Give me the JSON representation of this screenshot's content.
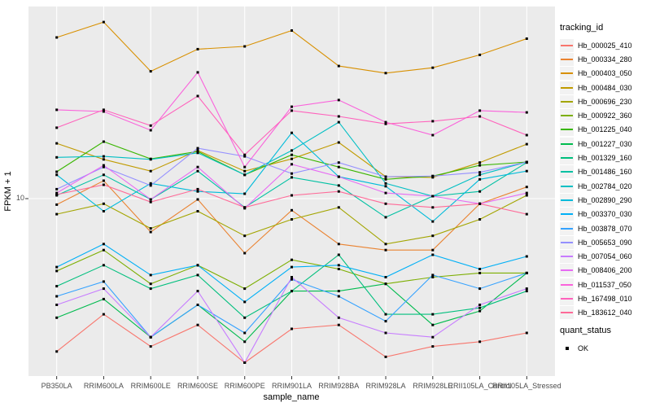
{
  "figure": {
    "y_tick_label": "10",
    "legend": {
      "tracking_title": "tracking_id",
      "quant_title": "quant_status",
      "quant_items": [
        {
          "label": "OK",
          "shape": "black-square"
        }
      ]
    },
    "colors": {
      "panel_bg": "#EBEBEB",
      "gridline": "#FFFFFF",
      "point": "#000000",
      "tick_text": "#4D4D4D",
      "legend_key_bg": "#F2F2F2"
    }
  },
  "chart_data": {
    "type": "line",
    "title": "",
    "xlabel": "sample_name",
    "ylabel": "FPKM + 1",
    "y_scale": "log10",
    "ylim": [
      1,
      100
    ],
    "y_breaks": [
      10
    ],
    "grid": "major-only",
    "legend_position": "right",
    "point_shape": "filled-black-square",
    "quant_status": "OK",
    "categories": [
      "PB350LA",
      "RRIM600LA",
      "RRIM600LE",
      "RRIM600SE",
      "RRIM600PE",
      "RRIM901LA",
      "RRIM928BA",
      "RRIM928LA",
      "RRIM928LE",
      "RRII105LA_Control",
      "RRII105LA_Stressed"
    ],
    "series": [
      {
        "name": "Hb_000025_410",
        "color": "#F8766D",
        "values": [
          1.6,
          2.5,
          1.7,
          2.2,
          1.4,
          2.1,
          2.2,
          1.5,
          1.7,
          1.8,
          2.0
        ]
      },
      {
        "name": "Hb_000334_280",
        "color": "#EA8331",
        "values": [
          9.3,
          12.4,
          6.7,
          9.9,
          5.2,
          8.7,
          5.8,
          5.4,
          5.4,
          9.4,
          11.5
        ]
      },
      {
        "name": "Hb_000403_050",
        "color": "#D89000",
        "values": [
          69,
          83,
          46,
          60,
          62,
          75,
          49,
          45,
          48,
          56,
          68
        ]
      },
      {
        "name": "Hb_000484_030",
        "color": "#C09B00",
        "values": [
          19.4,
          16.0,
          13.9,
          17.8,
          13.9,
          16.1,
          19.6,
          13.0,
          12.9,
          15.4,
          19.2
        ]
      },
      {
        "name": "Hb_000696_230",
        "color": "#A3A500",
        "values": [
          8.3,
          9.4,
          7.0,
          8.6,
          6.4,
          7.8,
          9.0,
          5.8,
          6.4,
          7.8,
          10.4
        ]
      },
      {
        "name": "Hb_000922_360",
        "color": "#7CAE00",
        "values": [
          4.2,
          5.4,
          3.6,
          4.5,
          3.4,
          4.8,
          4.3,
          3.6,
          3.9,
          4.1,
          4.1
        ]
      },
      {
        "name": "Hb_001225_040",
        "color": "#39B600",
        "values": [
          13.8,
          19.8,
          16.1,
          17.6,
          13.3,
          16.9,
          14.6,
          12.6,
          13.1,
          14.9,
          15.5
        ]
      },
      {
        "name": "Hb_001227_030",
        "color": "#00BB4E",
        "values": [
          2.4,
          3.0,
          1.9,
          2.8,
          1.8,
          3.3,
          3.3,
          3.6,
          2.2,
          2.6,
          4.1
        ]
      },
      {
        "name": "Hb_001329_160",
        "color": "#00BF7D",
        "values": [
          3.5,
          4.5,
          3.4,
          4.0,
          2.4,
          3.3,
          5.1,
          2.5,
          2.5,
          2.7,
          3.3
        ]
      },
      {
        "name": "Hb_001486_160",
        "color": "#00C1A3",
        "values": [
          10.4,
          13.3,
          9.9,
          13.9,
          9.0,
          12.9,
          11.7,
          8.0,
          10.3,
          10.9,
          15.4
        ]
      },
      {
        "name": "Hb_002784_020",
        "color": "#00BFC4",
        "values": [
          16.4,
          16.6,
          16.0,
          17.3,
          13.3,
          17.8,
          25.0,
          12.0,
          10.3,
          13.3,
          15.5
        ]
      },
      {
        "name": "Hb_002890_290",
        "color": "#00BBDA",
        "values": [
          13.3,
          8.6,
          12.0,
          10.9,
          10.6,
          22.0,
          13.0,
          11.6,
          7.6,
          12.6,
          13.9
        ]
      },
      {
        "name": "Hb_003370_030",
        "color": "#00B0F6",
        "values": [
          4.4,
          5.8,
          4.0,
          4.5,
          2.9,
          4.4,
          4.5,
          3.9,
          5.1,
          4.3,
          5.0
        ]
      },
      {
        "name": "Hb_003878_070",
        "color": "#35A2FF",
        "values": [
          3.1,
          3.7,
          1.9,
          2.8,
          2.0,
          3.8,
          3.1,
          2.3,
          4.0,
          3.4,
          4.1
        ]
      },
      {
        "name": "Hb_005653_090",
        "color": "#9590FF",
        "values": [
          11.2,
          14.6,
          11.7,
          18.3,
          16.6,
          13.5,
          15.4,
          13.0,
          13.1,
          13.7,
          15.5
        ]
      },
      {
        "name": "Hb_007054_060",
        "color": "#C77CFF",
        "values": [
          2.8,
          3.4,
          1.9,
          3.3,
          1.4,
          3.9,
          2.4,
          2.0,
          1.9,
          2.8,
          3.4
        ]
      },
      {
        "name": "Hb_008406_200",
        "color": "#E76BF3",
        "values": [
          10.7,
          14.9,
          9.9,
          14.6,
          8.9,
          15.1,
          13.0,
          10.7,
          10.3,
          9.4,
          10.7
        ]
      },
      {
        "name": "Hb_011537_050",
        "color": "#FA62DB",
        "values": [
          29.0,
          28.4,
          22.7,
          45.4,
          14.6,
          30.1,
          32.6,
          25.0,
          21.4,
          28.7,
          28.1
        ]
      },
      {
        "name": "Hb_167498_010",
        "color": "#FF62BC",
        "values": [
          23.4,
          29.0,
          24.0,
          34.2,
          16.9,
          28.7,
          26.8,
          24.5,
          25.3,
          26.8,
          21.4
        ]
      },
      {
        "name": "Hb_183612_040",
        "color": "#FF6A98",
        "values": [
          10.5,
          11.8,
          9.6,
          11.2,
          9.0,
          10.4,
          10.9,
          9.4,
          9.0,
          9.4,
          8.3
        ]
      }
    ]
  }
}
